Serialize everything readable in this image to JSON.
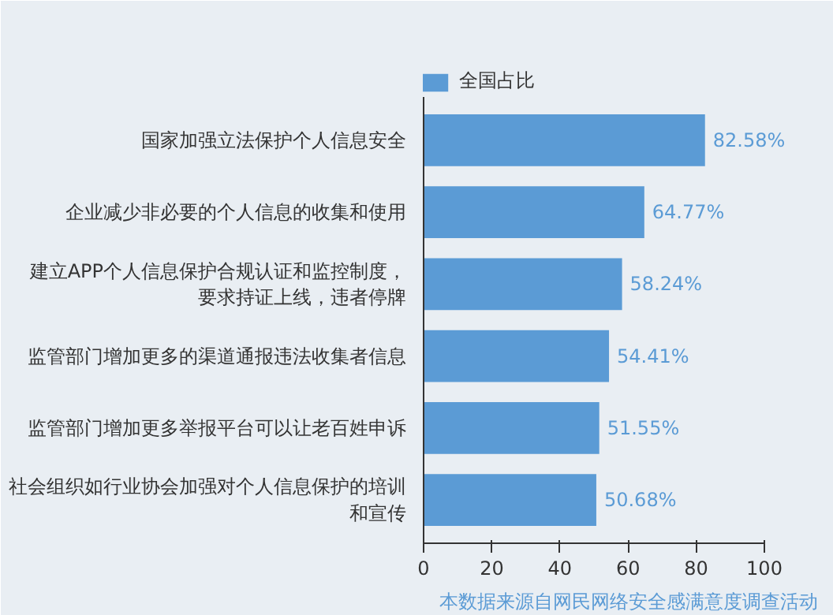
{
  "chart_data": {
    "type": "bar",
    "orientation": "horizontal",
    "categories": [
      "国家加强立法保护个人信息安全",
      "企业减少非必要的个人信息的收集和使用",
      "建立APP个人信息保护合规认证和监控制度，要求持证上线，违者停牌",
      "监管部门增加更多的渠道通报违法收集者信息",
      "监管部门增加更多举报平台可以让老百姓申诉",
      "社会组织如行业协会加强对个人信息保护的培训和宣传"
    ],
    "series": [
      {
        "name": "全国占比",
        "color": "#5b9bd5",
        "values": [
          82.58,
          64.77,
          58.24,
          54.41,
          51.55,
          50.68
        ]
      }
    ],
    "value_labels": [
      "82.58%",
      "64.77%",
      "58.24%",
      "54.41%",
      "51.55%",
      "50.68%"
    ],
    "xlim": [
      0,
      100
    ],
    "xticks": [
      0,
      20,
      40,
      60,
      80,
      100
    ],
    "legend": "top",
    "grid": false,
    "annotations": [
      "本数据来源自网民网络安全感满意度调查活动"
    ]
  }
}
